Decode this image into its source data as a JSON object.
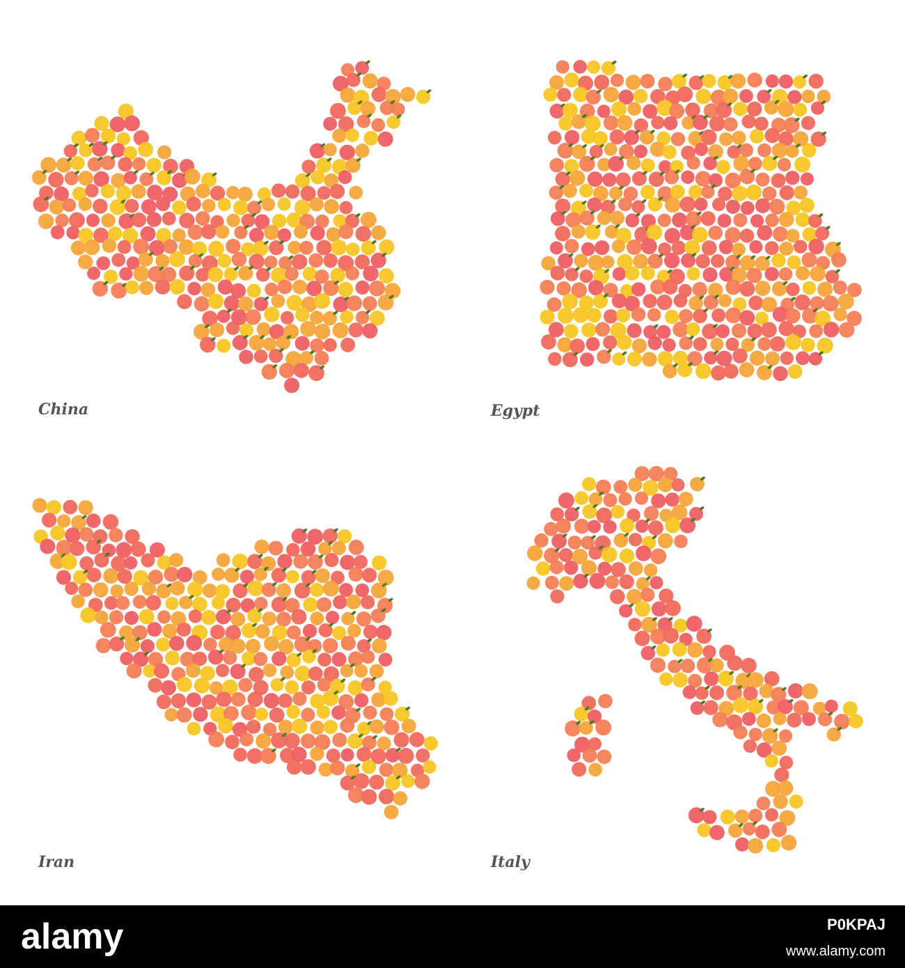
{
  "maps": [
    {
      "label": "China"
    },
    {
      "label": "Egypt"
    },
    {
      "label": "Iran"
    },
    {
      "label": "Italy"
    }
  ],
  "footer": {
    "logo": "alamy",
    "image_id": "P0KPAJ",
    "url": "www.alamy.com"
  }
}
